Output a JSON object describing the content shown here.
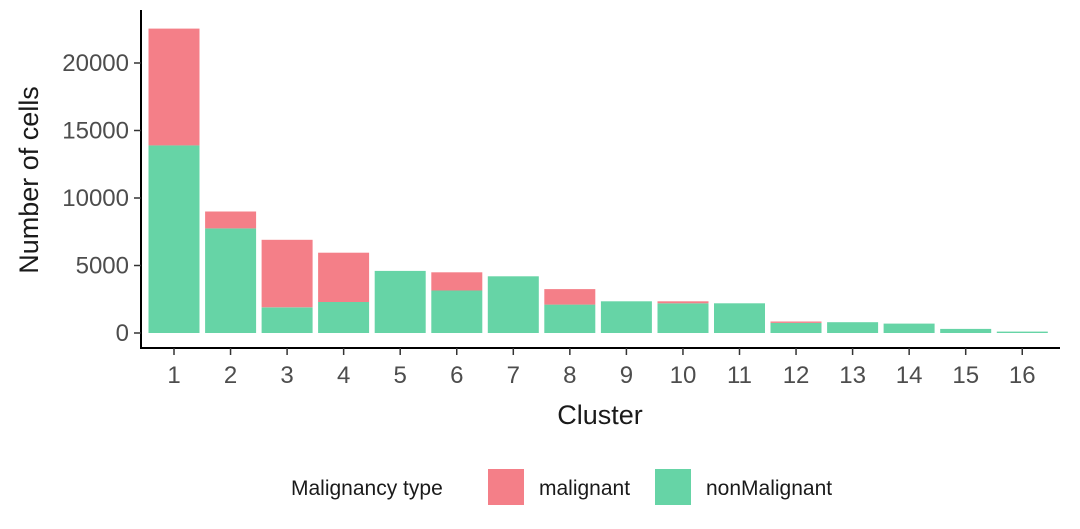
{
  "chart_data": {
    "type": "bar",
    "stacked": true,
    "categories": [
      "1",
      "2",
      "3",
      "4",
      "5",
      "6",
      "7",
      "8",
      "9",
      "10",
      "11",
      "12",
      "13",
      "14",
      "15",
      "16"
    ],
    "series": [
      {
        "name": "nonMalignant",
        "color": "#66D4A6",
        "values": [
          13900,
          7750,
          1900,
          2300,
          4600,
          3150,
          4200,
          2100,
          2350,
          2200,
          2200,
          750,
          800,
          700,
          300,
          100
        ]
      },
      {
        "name": "malignant",
        "color": "#F47F88",
        "values": [
          8650,
          1250,
          5000,
          3650,
          0,
          1350,
          0,
          1150,
          0,
          150,
          0,
          100,
          0,
          0,
          0,
          0
        ]
      }
    ],
    "xlabel": "Cluster",
    "ylabel": "Number of cells",
    "yticks": [
      0,
      5000,
      10000,
      15000,
      20000
    ],
    "ylim": [
      0,
      23800
    ],
    "grid": false,
    "legend": {
      "title": "Malignancy type",
      "position": "bottom",
      "items": [
        "malignant",
        "nonMalignant"
      ]
    }
  }
}
